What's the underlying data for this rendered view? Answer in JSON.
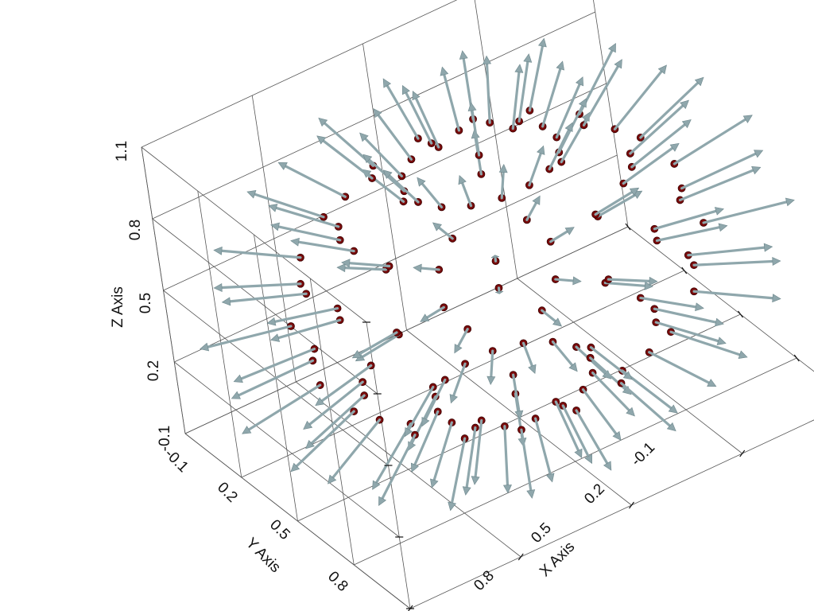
{
  "chart_data": {
    "type": "quiver3d",
    "xlabel": "X Axis",
    "ylabel": "Y Axis",
    "zlabel": "Z Axis",
    "xlim": [
      -0.1,
      1.1
    ],
    "ylim": [
      -0.1,
      1.1
    ],
    "zlim": [
      -0.1,
      1.1
    ],
    "x_ticks": [
      "-0.1",
      "0.2",
      "0.5",
      "0.8"
    ],
    "y_ticks": [
      "-0.1",
      "0.2",
      "0.5",
      "0.8"
    ],
    "z_ticks": [
      "-0.1",
      "0.2",
      "0.5",
      "0.8",
      "1.1"
    ],
    "grid": true,
    "field": {
      "center": [
        0.5,
        0.5,
        0.5
      ],
      "radius": 0.5,
      "direction": "radial-outward",
      "point_color": "#7a0a0a",
      "arrow_color": "#8fa7ac"
    }
  }
}
